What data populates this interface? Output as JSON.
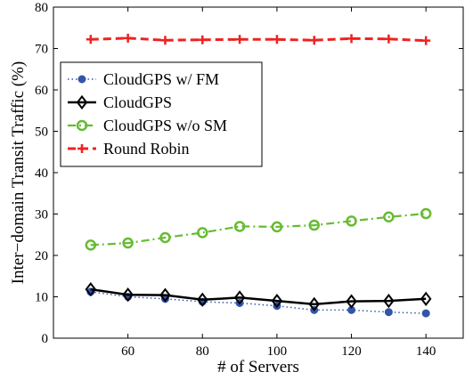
{
  "chart_data": {
    "type": "line",
    "title": "",
    "xlabel": "# of Servers",
    "ylabel": "Inter−domain Transit Traffic (%)",
    "xlim": [
      40,
      150
    ],
    "ylim": [
      0,
      80
    ],
    "xticks": [
      60,
      80,
      100,
      120,
      140
    ],
    "yticks": [
      0,
      10,
      20,
      30,
      40,
      50,
      60,
      70,
      80
    ],
    "grid": false,
    "legend_position": "upper-left",
    "x": [
      50,
      60,
      70,
      80,
      90,
      100,
      110,
      120,
      130,
      140
    ],
    "series": [
      {
        "name": "CloudGPS w/ FM",
        "values": [
          11.2,
          10.0,
          9.5,
          8.8,
          8.5,
          7.8,
          6.8,
          6.8,
          6.3,
          6.0
        ],
        "color": "#3355aa",
        "line_style": "dotted",
        "marker": "filled-circle"
      },
      {
        "name": "CloudGPS",
        "values": [
          11.8,
          10.5,
          10.4,
          9.3,
          9.8,
          9.0,
          8.2,
          8.9,
          9.0,
          9.5
        ],
        "color": "#000000",
        "line_style": "solid",
        "marker": "diamond"
      },
      {
        "name": "CloudGPS w/o SM",
        "values": [
          22.5,
          23.0,
          24.3,
          25.5,
          27.0,
          26.9,
          27.3,
          28.3,
          29.3,
          30.1
        ],
        "color": "#66bb33",
        "line_style": "dashdot",
        "marker": "open-circle"
      },
      {
        "name": "Round Robin",
        "values": [
          72.2,
          72.5,
          72.0,
          72.1,
          72.2,
          72.2,
          72.0,
          72.4,
          72.3,
          71.9
        ],
        "color": "#ee2222",
        "line_style": "dashed",
        "marker": "plus"
      }
    ]
  }
}
